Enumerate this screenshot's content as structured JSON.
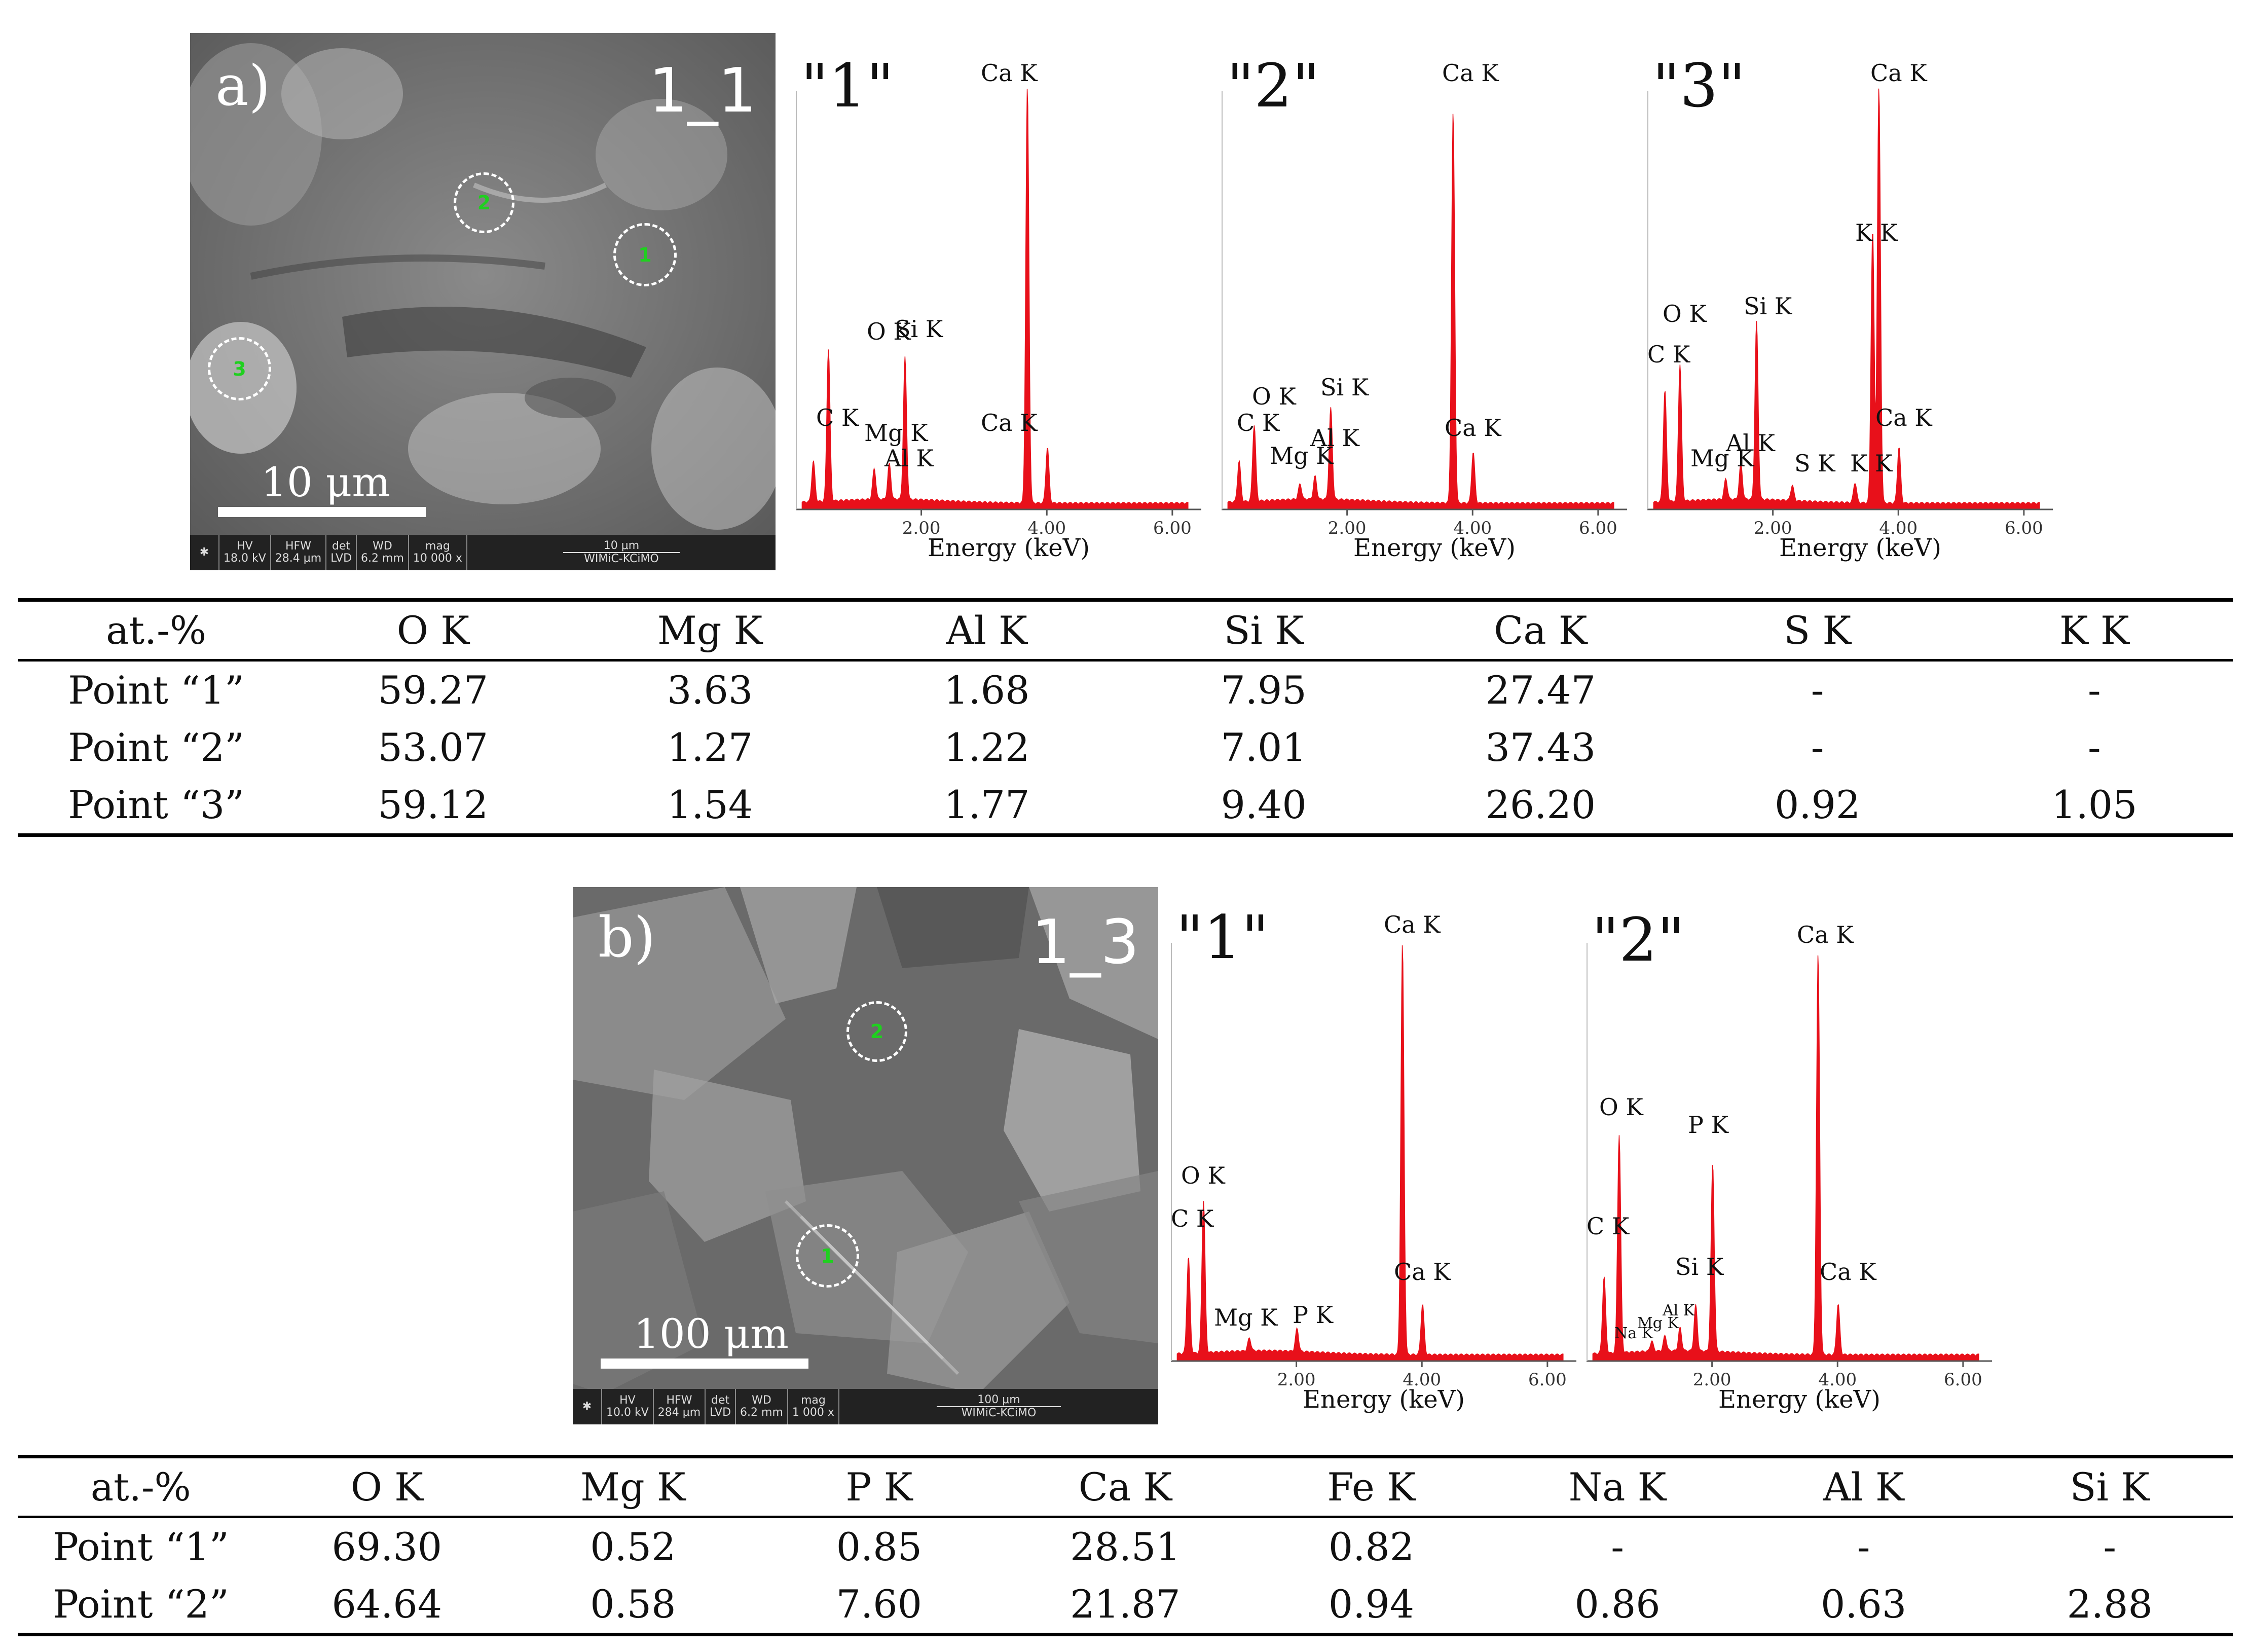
{
  "panels": [
    {
      "sem": {
        "letter": "a)",
        "id": "1_1",
        "scale_label": "10 μm",
        "markers": [
          "1",
          "2",
          "3"
        ],
        "info": {
          "hv_label": "HV",
          "hv": "18.0 kV",
          "hfw_label": "HFW",
          "hfw": "28.4 μm",
          "det_label": "det",
          "det": "LVD",
          "wd_label": "WD",
          "wd": "6.2 mm",
          "mag_label": "mag",
          "mag": "10 000 x",
          "bar": "10 μm",
          "org": "WIMiC-KCiMO"
        }
      },
      "spectra": [
        {
          "title": "\"1\"",
          "xlabel": "Energy (keV)",
          "ticks": [
            "2.00",
            "4.00",
            "6.00"
          ],
          "labels": [
            "C K",
            "O K",
            "Mg K",
            "Al K",
            "Si K",
            "Ca K",
            "Ca K"
          ]
        },
        {
          "title": "\"2\"",
          "xlabel": "Energy (keV)",
          "ticks": [
            "2.00",
            "4.00",
            "6.00"
          ],
          "labels": [
            "C K",
            "O K",
            "Mg K",
            "Al K",
            "Si K",
            "Ca K",
            "Ca K"
          ]
        },
        {
          "title": "\"3\"",
          "xlabel": "Energy (keV)",
          "ticks": [
            "2.00",
            "4.00",
            "6.00"
          ],
          "labels": [
            "C K",
            "O K",
            "Mg K",
            "Al K",
            "Si K",
            "S K",
            "K K",
            "K K",
            "Ca K",
            "Ca K"
          ]
        }
      ],
      "table": {
        "headers": [
          "at.-%",
          "O K",
          "Mg K",
          "Al K",
          "Si K",
          "Ca K",
          "S K",
          "K K"
        ],
        "rows": [
          [
            "Point “1”",
            "59.27",
            "3.63",
            "1.68",
            "7.95",
            "27.47",
            "-",
            "-"
          ],
          [
            "Point “2”",
            "53.07",
            "1.27",
            "1.22",
            "7.01",
            "37.43",
            "-",
            "-"
          ],
          [
            "Point “3”",
            "59.12",
            "1.54",
            "1.77",
            "9.40",
            "26.20",
            "0.92",
            "1.05"
          ]
        ]
      }
    },
    {
      "sem": {
        "letter": "b)",
        "id": "1_3",
        "scale_label": "100 μm",
        "markers": [
          "1",
          "2"
        ],
        "info": {
          "hv_label": "HV",
          "hv": "10.0 kV",
          "hfw_label": "HFW",
          "hfw": "284 μm",
          "det_label": "det",
          "det": "LVD",
          "wd_label": "WD",
          "wd": "6.2 mm",
          "mag_label": "mag",
          "mag": "1 000 x",
          "bar": "100 μm",
          "org": "WIMiC-KCiMO"
        }
      },
      "spectra": [
        {
          "title": "\"1\"",
          "xlabel": "Energy (keV)",
          "ticks": [
            "2.00",
            "4.00",
            "6.00"
          ],
          "labels": [
            "C K",
            "O K",
            "Mg K",
            "P K",
            "Ca K",
            "Ca K"
          ]
        },
        {
          "title": "\"2\"",
          "xlabel": "Energy (keV)",
          "ticks": [
            "2.00",
            "4.00",
            "6.00"
          ],
          "labels": [
            "C K",
            "O K",
            "Na K",
            "Mg K",
            "Al K",
            "Si K",
            "P K",
            "Ca K",
            "Ca K"
          ]
        }
      ],
      "table": {
        "headers": [
          "at.-%",
          "O K",
          "Mg K",
          "P K",
          "Ca K",
          "Fe K",
          "Na K",
          "Al K",
          "Si K"
        ],
        "rows": [
          [
            "Point “1”",
            "69.30",
            "0.52",
            "0.85",
            "28.51",
            "0.82",
            "-",
            "-",
            "-"
          ],
          [
            "Point “2”",
            "64.64",
            "0.58",
            "7.60",
            "21.87",
            "0.94",
            "0.86",
            "0.63",
            "2.88"
          ]
        ]
      }
    }
  ],
  "colors": {
    "spectrum": "#e8101a",
    "marker_text": "#1fd01f",
    "rule": "#000000"
  }
}
